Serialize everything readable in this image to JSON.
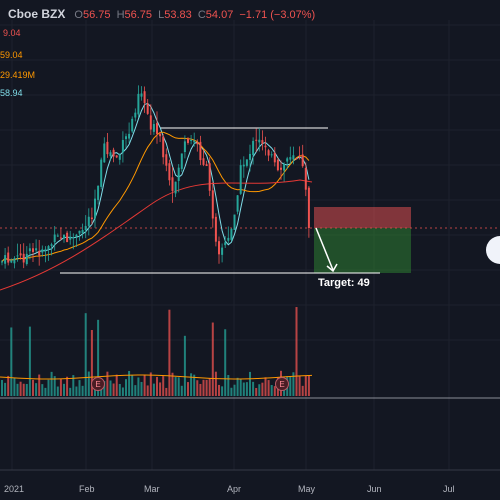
{
  "header": {
    "symbol": "Cboe BZX",
    "open_label": "O",
    "open": "56.75",
    "high_label": "H",
    "high": "56.75",
    "low_label": "L",
    "low": "53.83",
    "close_label": "C",
    "close": "54.07",
    "change": "−1.71 (−3.07%)"
  },
  "indicators": [
    {
      "value": "9.04",
      "color": "#ef5350"
    },
    {
      "value": "59.04",
      "color": "#ff9800"
    },
    {
      "value": "29.419M",
      "color": "#ff9800"
    },
    {
      "value": "58.94",
      "color": "#80deea"
    }
  ],
  "annotation": {
    "target_label": "Target: 49"
  },
  "earnings_marker": "E",
  "x_axis": [
    "2021",
    "Feb",
    "Mar",
    "Apr",
    "May",
    "Jun",
    "Jul"
  ],
  "colors": {
    "up": "#26a69a",
    "down": "#ef5350",
    "background": "#131722"
  }
}
